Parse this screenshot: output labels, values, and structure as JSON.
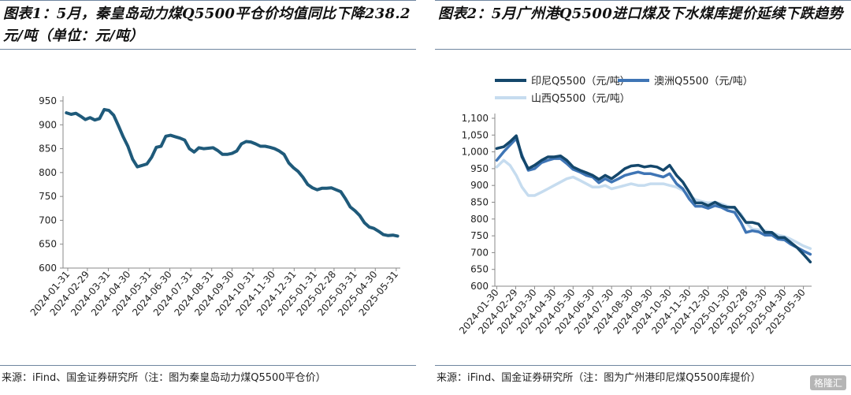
{
  "panel1": {
    "title": "图表1：5月，秦皇岛动力煤Q5500平仓价均值同比下降238.2元/吨（单位：元/吨）",
    "source": "来源：iFind、国金证券研究所（注：图为秦皇岛动力煤Q5500平仓价）"
  },
  "panel2": {
    "title": "图表2：5月广州港Q5500进口煤及下水煤库提价延续下跌趋势",
    "source": "来源：iFind、国金证券研究所（注：图为广州港印尼煤Q5500库提价）"
  },
  "watermark": "格隆汇",
  "chart_data": [
    {
      "type": "line",
      "title": "",
      "xlabel": "",
      "ylabel": "",
      "ylim": [
        600,
        950
      ],
      "yticks": [
        600,
        650,
        700,
        750,
        800,
        850,
        900,
        950
      ],
      "grid": false,
      "xticks": [
        "2024-01-31",
        "2024-02-29",
        "2024-03-31",
        "2024-04-30",
        "2024-05-31",
        "2024-06-30",
        "2024-07-31",
        "2024-08-31",
        "2024-09-30",
        "2024-10-31",
        "2024-11-30",
        "2024-12-31",
        "2025-01-31",
        "2025-02-28",
        "2025-03-31",
        "2025-04-30",
        "2025-05-31"
      ],
      "series": [
        {
          "color": "#1f5a7a",
          "x": [
            "2024-01-29",
            "2024-02-05",
            "2024-02-12",
            "2024-02-19",
            "2024-02-26",
            "2024-03-04",
            "2024-03-11",
            "2024-03-18",
            "2024-03-25",
            "2024-04-01",
            "2024-04-08",
            "2024-04-15",
            "2024-04-22",
            "2024-04-29",
            "2024-05-06",
            "2024-05-13",
            "2024-05-20",
            "2024-05-27",
            "2024-06-03",
            "2024-06-10",
            "2024-06-17",
            "2024-06-24",
            "2024-07-01",
            "2024-07-08",
            "2024-07-15",
            "2024-07-22",
            "2024-07-29",
            "2024-08-05",
            "2024-08-12",
            "2024-08-19",
            "2024-08-26",
            "2024-09-02",
            "2024-09-09",
            "2024-09-16",
            "2024-09-23",
            "2024-09-30",
            "2024-10-07",
            "2024-10-14",
            "2024-10-21",
            "2024-10-28",
            "2024-11-04",
            "2024-11-11",
            "2024-11-18",
            "2024-11-25",
            "2024-12-02",
            "2024-12-09",
            "2024-12-16",
            "2024-12-23",
            "2024-12-30",
            "2025-01-06",
            "2025-01-13",
            "2025-01-20",
            "2025-01-27",
            "2025-02-03",
            "2025-02-10",
            "2025-02-17",
            "2025-02-24",
            "2025-03-03",
            "2025-03-10",
            "2025-03-17",
            "2025-03-24",
            "2025-03-31",
            "2025-04-07",
            "2025-04-14",
            "2025-04-21",
            "2025-04-28",
            "2025-05-05",
            "2025-05-12",
            "2025-05-19",
            "2025-05-26",
            "2025-06-02"
          ],
          "values": [
            925,
            922,
            924,
            918,
            911,
            915,
            910,
            913,
            932,
            930,
            920,
            898,
            875,
            855,
            828,
            812,
            815,
            818,
            832,
            853,
            855,
            876,
            878,
            875,
            872,
            868,
            850,
            843,
            852,
            850,
            851,
            852,
            846,
            838,
            838,
            840,
            845,
            860,
            865,
            864,
            860,
            855,
            855,
            853,
            850,
            845,
            838,
            820,
            810,
            802,
            790,
            775,
            768,
            764,
            767,
            767,
            768,
            764,
            760,
            745,
            728,
            720,
            710,
            695,
            686,
            683,
            677,
            670,
            668,
            669,
            667
          ]
        }
      ]
    },
    {
      "type": "line",
      "title": "",
      "xlabel": "",
      "ylabel": "",
      "ylim": [
        600,
        1100
      ],
      "yticks": [
        600,
        650,
        700,
        750,
        800,
        850,
        900,
        950,
        1000,
        1050,
        1100
      ],
      "grid": false,
      "legend": "top",
      "xticks": [
        "2024-01-30",
        "2024-02-29",
        "2024-03-30",
        "2024-04-30",
        "2024-05-30",
        "2024-06-30",
        "2024-07-30",
        "2024-08-30",
        "2024-09-30",
        "2024-10-30",
        "2024-11-30",
        "2024-12-30",
        "2025-01-30",
        "2025-02-28",
        "2025-03-30",
        "2025-04-30",
        "2025-05-30"
      ],
      "series": [
        {
          "name": "印尼Q5500（元/吨）",
          "color": "#14476b",
          "x": [
            "2024-01-30",
            "2024-02-10",
            "2024-02-20",
            "2024-03-01",
            "2024-03-10",
            "2024-03-20",
            "2024-03-30",
            "2024-04-10",
            "2024-04-20",
            "2024-04-30",
            "2024-05-10",
            "2024-05-20",
            "2024-05-30",
            "2024-06-10",
            "2024-06-20",
            "2024-06-30",
            "2024-07-10",
            "2024-07-20",
            "2024-07-30",
            "2024-08-10",
            "2024-08-20",
            "2024-08-30",
            "2024-09-10",
            "2024-09-20",
            "2024-09-30",
            "2024-10-10",
            "2024-10-20",
            "2024-10-30",
            "2024-11-10",
            "2024-11-20",
            "2024-11-30",
            "2024-12-10",
            "2024-12-20",
            "2024-12-30",
            "2025-01-10",
            "2025-01-20",
            "2025-01-30",
            "2025-02-10",
            "2025-02-20",
            "2025-02-28",
            "2025-03-10",
            "2025-03-20",
            "2025-03-30",
            "2025-04-10",
            "2025-04-20",
            "2025-04-30",
            "2025-05-10",
            "2025-05-20",
            "2025-05-30",
            "2025-06-10"
          ],
          "values": [
            1010,
            1015,
            1030,
            1048,
            985,
            950,
            960,
            975,
            985,
            985,
            988,
            975,
            955,
            945,
            938,
            930,
            918,
            930,
            920,
            935,
            950,
            958,
            960,
            955,
            958,
            955,
            945,
            960,
            930,
            910,
            880,
            848,
            848,
            840,
            850,
            840,
            835,
            835,
            810,
            790,
            790,
            785,
            760,
            760,
            745,
            745,
            730,
            715,
            695,
            672
          ]
        },
        {
          "name": "澳洲Q5500（元/吨）",
          "color": "#3f75b5",
          "x": [
            "2024-01-30",
            "2024-02-10",
            "2024-02-20",
            "2024-03-01",
            "2024-03-10",
            "2024-03-20",
            "2024-03-30",
            "2024-04-10",
            "2024-04-20",
            "2024-04-30",
            "2024-05-10",
            "2024-05-20",
            "2024-05-30",
            "2024-06-10",
            "2024-06-20",
            "2024-06-30",
            "2024-07-10",
            "2024-07-20",
            "2024-07-30",
            "2024-08-10",
            "2024-08-20",
            "2024-08-30",
            "2024-09-10",
            "2024-09-20",
            "2024-09-30",
            "2024-10-10",
            "2024-10-20",
            "2024-10-30",
            "2024-11-10",
            "2024-11-20",
            "2024-11-30",
            "2024-12-10",
            "2024-12-20",
            "2024-12-30",
            "2025-01-10",
            "2025-01-20",
            "2025-01-30",
            "2025-02-10",
            "2025-02-20",
            "2025-02-28",
            "2025-03-10",
            "2025-03-20",
            "2025-03-30",
            "2025-04-10",
            "2025-04-20",
            "2025-04-30",
            "2025-05-10",
            "2025-05-20",
            "2025-05-30",
            "2025-06-10"
          ],
          "values": [
            975,
            1000,
            1020,
            1040,
            990,
            945,
            950,
            968,
            975,
            980,
            980,
            965,
            948,
            940,
            930,
            925,
            908,
            920,
            910,
            920,
            930,
            935,
            940,
            935,
            935,
            930,
            925,
            935,
            905,
            890,
            860,
            838,
            838,
            832,
            840,
            835,
            825,
            820,
            790,
            760,
            765,
            762,
            752,
            752,
            740,
            738,
            725,
            715,
            705,
            695
          ]
        },
        {
          "name": "山西Q5500（元/吨）",
          "color": "#c6dcef",
          "x": [
            "2024-01-30",
            "2024-02-10",
            "2024-02-20",
            "2024-03-01",
            "2024-03-10",
            "2024-03-20",
            "2024-03-30",
            "2024-04-10",
            "2024-04-20",
            "2024-04-30",
            "2024-05-10",
            "2024-05-20",
            "2024-05-30",
            "2024-06-10",
            "2024-06-20",
            "2024-06-30",
            "2024-07-10",
            "2024-07-20",
            "2024-07-30",
            "2024-08-10",
            "2024-08-20",
            "2024-08-30",
            "2024-09-10",
            "2024-09-20",
            "2024-09-30",
            "2024-10-10",
            "2024-10-20",
            "2024-10-30",
            "2024-11-10",
            "2024-11-20",
            "2024-11-30",
            "2024-12-10",
            "2024-12-20",
            "2024-12-30",
            "2025-01-10",
            "2025-01-20",
            "2025-01-30",
            "2025-02-10",
            "2025-02-20",
            "2025-02-28",
            "2025-03-10",
            "2025-03-20",
            "2025-03-30",
            "2025-04-10",
            "2025-04-20",
            "2025-04-30",
            "2025-05-10",
            "2025-05-20",
            "2025-05-30",
            "2025-06-10"
          ],
          "values": [
            955,
            975,
            960,
            930,
            895,
            870,
            870,
            880,
            890,
            900,
            910,
            920,
            925,
            915,
            905,
            895,
            895,
            900,
            890,
            895,
            900,
            905,
            900,
            900,
            905,
            905,
            905,
            900,
            895,
            885,
            870,
            858,
            852,
            848,
            850,
            845,
            838,
            830,
            815,
            790,
            770,
            768,
            765,
            760,
            752,
            748,
            740,
            730,
            720,
            712
          ]
        }
      ]
    }
  ]
}
